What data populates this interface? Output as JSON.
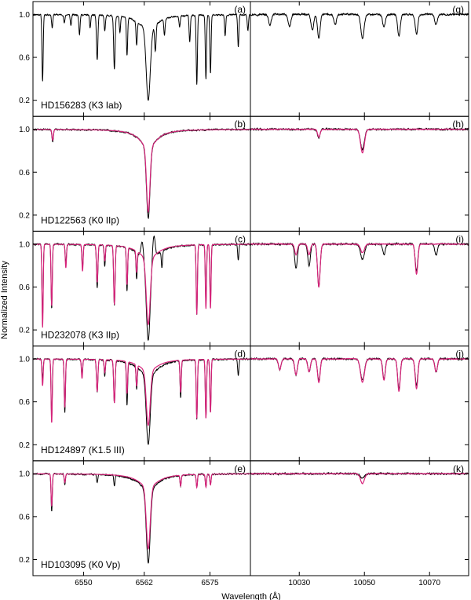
{
  "chart_data": {
    "type": "line",
    "ylabel": "Normalized Intensity",
    "xlabel": "Wavelength (Å)",
    "colors": {
      "observed": "#000000",
      "model": "#d6237a"
    },
    "x_left": {
      "lim": [
        6540,
        6583
      ],
      "ticks": [
        6550,
        6562,
        6575
      ]
    },
    "x_right": {
      "lim": [
        10015,
        10082
      ],
      "ticks": [
        10030,
        10050,
        10070
      ]
    },
    "ylim": [
      0.05,
      1.12
    ],
    "yticks": [
      "1.0",
      "0.6",
      "0.2"
    ],
    "yticks_values": [
      1.0,
      0.6,
      0.2
    ],
    "rows": [
      {
        "star": "HD156283 (K3 Iab)",
        "left_label": "(a)",
        "right_label": "(g)",
        "has_model": false,
        "left_lines": [
          {
            "x": 6541.9,
            "d": 0.62,
            "w": 0.12
          },
          {
            "x": 6543.8,
            "d": 0.12,
            "w": 0.12
          },
          {
            "x": 6546.2,
            "d": 0.08,
            "w": 0.12
          },
          {
            "x": 6547.5,
            "d": 0.1,
            "w": 0.12
          },
          {
            "x": 6549.2,
            "d": 0.18,
            "w": 0.12
          },
          {
            "x": 6551.3,
            "d": 0.12,
            "w": 0.12
          },
          {
            "x": 6552.7,
            "d": 0.42,
            "w": 0.14
          },
          {
            "x": 6554.2,
            "d": 0.15,
            "w": 0.12
          },
          {
            "x": 6556.1,
            "d": 0.5,
            "w": 0.14
          },
          {
            "x": 6557.2,
            "d": 0.15,
            "w": 0.12
          },
          {
            "x": 6558.6,
            "d": 0.35,
            "w": 0.12
          },
          {
            "x": 6560.5,
            "d": 0.22,
            "w": 0.12
          },
          {
            "x": 6562.8,
            "d": 0.8,
            "w": 0.4,
            "p": 0.18
          },
          {
            "x": 6564.2,
            "d": 0.25,
            "w": 0.14
          },
          {
            "x": 6566.0,
            "d": 0.15,
            "w": 0.12
          },
          {
            "x": 6569.0,
            "d": 0.1,
            "w": 0.12
          },
          {
            "x": 6571.0,
            "d": 0.25,
            "w": 0.12
          },
          {
            "x": 6572.4,
            "d": 0.65,
            "w": 0.12
          },
          {
            "x": 6574.2,
            "d": 0.6,
            "w": 0.12
          },
          {
            "x": 6575.1,
            "d": 0.55,
            "w": 0.12
          },
          {
            "x": 6578.0,
            "d": 0.2,
            "w": 0.12
          },
          {
            "x": 6580.6,
            "d": 0.3,
            "w": 0.12
          },
          {
            "x": 6582.5,
            "d": 0.15,
            "w": 0.12
          }
        ],
        "right_lines": [
          {
            "x": 10021,
            "d": 0.1,
            "w": 0.4
          },
          {
            "x": 10027,
            "d": 0.12,
            "w": 0.4
          },
          {
            "x": 10034,
            "d": 0.15,
            "w": 0.4
          },
          {
            "x": 10036,
            "d": 0.22,
            "w": 0.4
          },
          {
            "x": 10041,
            "d": 0.1,
            "w": 0.4
          },
          {
            "x": 10049.4,
            "d": 0.22,
            "w": 0.5
          },
          {
            "x": 10056,
            "d": 0.12,
            "w": 0.4
          },
          {
            "x": 10060.6,
            "d": 0.2,
            "w": 0.4
          },
          {
            "x": 10066,
            "d": 0.18,
            "w": 0.4
          },
          {
            "x": 10072,
            "d": 0.1,
            "w": 0.4
          }
        ]
      },
      {
        "star": "HD122563 (K0 IIp)",
        "left_label": "(b)",
        "right_label": "(h)",
        "has_model": true,
        "left_lines": [
          {
            "x": 6543.9,
            "d": 0.12,
            "w": 0.14
          },
          {
            "x": 6562.8,
            "d": 0.83,
            "w": 0.35,
            "p": 0.22
          }
        ],
        "left_model_lines": [
          {
            "x": 6543.9,
            "d": 0.1,
            "w": 0.14
          },
          {
            "x": 6562.8,
            "d": 0.77,
            "w": 0.33,
            "p": 0.25
          }
        ],
        "right_lines": [
          {
            "x": 10036,
            "d": 0.08,
            "w": 0.4
          },
          {
            "x": 10049.4,
            "d": 0.19,
            "w": 0.6
          }
        ],
        "right_model_lines": [
          {
            "x": 10036,
            "d": 0.07,
            "w": 0.4
          },
          {
            "x": 10049.4,
            "d": 0.22,
            "w": 0.6
          }
        ]
      },
      {
        "star": "HD232078 (K3 IIp)",
        "left_label": "(c)",
        "right_label": "(i)",
        "has_model": true,
        "left_lines": [
          {
            "x": 6541.9,
            "d": 0.7,
            "w": 0.12
          },
          {
            "x": 6543.7,
            "d": 0.6,
            "w": 0.12
          },
          {
            "x": 6546.5,
            "d": 0.18,
            "w": 0.12
          },
          {
            "x": 6549.8,
            "d": 0.22,
            "w": 0.12
          },
          {
            "x": 6552.7,
            "d": 0.4,
            "w": 0.14
          },
          {
            "x": 6554.2,
            "d": 0.2,
            "w": 0.12
          },
          {
            "x": 6556.1,
            "d": 0.55,
            "w": 0.14
          },
          {
            "x": 6558.6,
            "d": 0.4,
            "w": 0.12
          },
          {
            "x": 6560.5,
            "d": 0.25,
            "w": 0.12
          },
          {
            "x": 6562.8,
            "d": 0.9,
            "w": 0.38,
            "p": 0.2
          },
          {
            "x": 6565.5,
            "d": 0.15,
            "w": 0.12
          },
          {
            "x": 6572.4,
            "d": 0.65,
            "w": 0.12
          },
          {
            "x": 6574.2,
            "d": 0.55,
            "w": 0.12
          },
          {
            "x": 6575.1,
            "d": 0.55,
            "w": 0.12
          },
          {
            "x": 6580.6,
            "d": 0.15,
            "w": 0.12
          }
        ],
        "left_model_lines": [
          {
            "x": 6541.9,
            "d": 0.78,
            "w": 0.12
          },
          {
            "x": 6543.7,
            "d": 0.58,
            "w": 0.12
          },
          {
            "x": 6546.5,
            "d": 0.22,
            "w": 0.12
          },
          {
            "x": 6549.8,
            "d": 0.25,
            "w": 0.12
          },
          {
            "x": 6552.7,
            "d": 0.35,
            "w": 0.14
          },
          {
            "x": 6554.2,
            "d": 0.15,
            "w": 0.12
          },
          {
            "x": 6556.1,
            "d": 0.55,
            "w": 0.14
          },
          {
            "x": 6558.6,
            "d": 0.35,
            "w": 0.12
          },
          {
            "x": 6560.5,
            "d": 0.2,
            "w": 0.12
          },
          {
            "x": 6562.8,
            "d": 0.75,
            "w": 0.38,
            "p": 0.2
          },
          {
            "x": 6572.4,
            "d": 0.65,
            "w": 0.12
          },
          {
            "x": 6574.2,
            "d": 0.6,
            "w": 0.12
          },
          {
            "x": 6575.1,
            "d": 0.6,
            "w": 0.12
          }
        ],
        "left_emission": [
          {
            "x": 6561.6,
            "h": 0.15,
            "w": 0.25
          },
          {
            "x": 6563.9,
            "h": 0.22,
            "w": 0.25
          }
        ],
        "right_lines": [
          {
            "x": 10029,
            "d": 0.23,
            "w": 0.4
          },
          {
            "x": 10033,
            "d": 0.2,
            "w": 0.4
          },
          {
            "x": 10036,
            "d": 0.4,
            "w": 0.4
          },
          {
            "x": 10049.4,
            "d": 0.14,
            "w": 0.6
          },
          {
            "x": 10056,
            "d": 0.1,
            "w": 0.4
          },
          {
            "x": 10066,
            "d": 0.25,
            "w": 0.4
          },
          {
            "x": 10072,
            "d": 0.1,
            "w": 0.4
          }
        ],
        "right_model_lines": [
          {
            "x": 10029,
            "d": 0.1,
            "w": 0.4
          },
          {
            "x": 10033,
            "d": 0.1,
            "w": 0.4
          },
          {
            "x": 10036,
            "d": 0.4,
            "w": 0.4
          },
          {
            "x": 10049.4,
            "d": 0.08,
            "w": 0.6
          },
          {
            "x": 10066,
            "d": 0.28,
            "w": 0.4
          }
        ]
      },
      {
        "star": "HD124897 (K1.5 III)",
        "left_label": "(d)",
        "right_label": "(j)",
        "has_model": true,
        "left_lines": [
          {
            "x": 6541.9,
            "d": 0.18,
            "w": 0.12
          },
          {
            "x": 6543.7,
            "d": 0.55,
            "w": 0.12
          },
          {
            "x": 6546.3,
            "d": 0.5,
            "w": 0.12
          },
          {
            "x": 6549.7,
            "d": 0.15,
            "w": 0.12
          },
          {
            "x": 6552.7,
            "d": 0.3,
            "w": 0.14
          },
          {
            "x": 6554.2,
            "d": 0.15,
            "w": 0.12
          },
          {
            "x": 6556.1,
            "d": 0.4,
            "w": 0.14
          },
          {
            "x": 6558.6,
            "d": 0.4,
            "w": 0.12
          },
          {
            "x": 6560.5,
            "d": 0.2,
            "w": 0.12
          },
          {
            "x": 6562.8,
            "d": 0.8,
            "w": 0.38,
            "p": 0.22
          },
          {
            "x": 6569.2,
            "d": 0.35,
            "w": 0.12
          },
          {
            "x": 6572.4,
            "d": 0.55,
            "w": 0.12
          },
          {
            "x": 6574.2,
            "d": 0.55,
            "w": 0.12
          },
          {
            "x": 6575.1,
            "d": 0.5,
            "w": 0.12
          },
          {
            "x": 6580.6,
            "d": 0.15,
            "w": 0.12
          }
        ],
        "left_model_lines": [
          {
            "x": 6541.9,
            "d": 0.25,
            "w": 0.12
          },
          {
            "x": 6543.7,
            "d": 0.6,
            "w": 0.12
          },
          {
            "x": 6546.3,
            "d": 0.45,
            "w": 0.12
          },
          {
            "x": 6549.7,
            "d": 0.18,
            "w": 0.12
          },
          {
            "x": 6552.7,
            "d": 0.3,
            "w": 0.14
          },
          {
            "x": 6554.2,
            "d": 0.12,
            "w": 0.12
          },
          {
            "x": 6556.1,
            "d": 0.4,
            "w": 0.14
          },
          {
            "x": 6558.6,
            "d": 0.3,
            "w": 0.12
          },
          {
            "x": 6560.5,
            "d": 0.2,
            "w": 0.12
          },
          {
            "x": 6562.8,
            "d": 0.62,
            "w": 0.38,
            "p": 0.2
          },
          {
            "x": 6569.2,
            "d": 0.3,
            "w": 0.12
          },
          {
            "x": 6572.4,
            "d": 0.55,
            "w": 0.12
          },
          {
            "x": 6574.2,
            "d": 0.55,
            "w": 0.12
          },
          {
            "x": 6575.1,
            "d": 0.5,
            "w": 0.12
          }
        ],
        "right_lines": [
          {
            "x": 10024,
            "d": 0.1,
            "w": 0.4
          },
          {
            "x": 10029,
            "d": 0.15,
            "w": 0.4
          },
          {
            "x": 10033,
            "d": 0.12,
            "w": 0.4
          },
          {
            "x": 10036,
            "d": 0.2,
            "w": 0.4
          },
          {
            "x": 10049.4,
            "d": 0.2,
            "w": 0.6
          },
          {
            "x": 10056,
            "d": 0.18,
            "w": 0.4
          },
          {
            "x": 10060.6,
            "d": 0.28,
            "w": 0.4
          },
          {
            "x": 10066,
            "d": 0.25,
            "w": 0.4
          },
          {
            "x": 10072,
            "d": 0.12,
            "w": 0.4
          }
        ],
        "right_model_lines": [
          {
            "x": 10024,
            "d": 0.1,
            "w": 0.4
          },
          {
            "x": 10029,
            "d": 0.15,
            "w": 0.4
          },
          {
            "x": 10033,
            "d": 0.12,
            "w": 0.4
          },
          {
            "x": 10036,
            "d": 0.22,
            "w": 0.4
          },
          {
            "x": 10049.4,
            "d": 0.22,
            "w": 0.6
          },
          {
            "x": 10056,
            "d": 0.2,
            "w": 0.4
          },
          {
            "x": 10060.6,
            "d": 0.3,
            "w": 0.4
          },
          {
            "x": 10066,
            "d": 0.28,
            "w": 0.4
          },
          {
            "x": 10072,
            "d": 0.12,
            "w": 0.4
          }
        ]
      },
      {
        "star": "HD103095 (K0 Vp)",
        "left_label": "(e)",
        "right_label": "(k)",
        "has_model": true,
        "left_lines": [
          {
            "x": 6543.7,
            "d": 0.35,
            "w": 0.12
          },
          {
            "x": 6546.3,
            "d": 0.1,
            "w": 0.12
          },
          {
            "x": 6552.7,
            "d": 0.08,
            "w": 0.12
          },
          {
            "x": 6556.1,
            "d": 0.1,
            "w": 0.12
          },
          {
            "x": 6562.8,
            "d": 0.83,
            "w": 0.38,
            "p": 0.2
          },
          {
            "x": 6569.2,
            "d": 0.1,
            "w": 0.12
          },
          {
            "x": 6572.4,
            "d": 0.12,
            "w": 0.12
          },
          {
            "x": 6574.2,
            "d": 0.12,
            "w": 0.12
          },
          {
            "x": 6575.1,
            "d": 0.1,
            "w": 0.12
          }
        ],
        "left_model_lines": [
          {
            "x": 6543.7,
            "d": 0.3,
            "w": 0.12
          },
          {
            "x": 6546.3,
            "d": 0.08,
            "w": 0.12
          },
          {
            "x": 6562.8,
            "d": 0.7,
            "w": 0.38,
            "p": 0.2
          },
          {
            "x": 6569.2,
            "d": 0.1,
            "w": 0.12
          },
          {
            "x": 6572.4,
            "d": 0.12,
            "w": 0.12
          },
          {
            "x": 6574.2,
            "d": 0.12,
            "w": 0.12
          },
          {
            "x": 6575.1,
            "d": 0.1,
            "w": 0.12
          }
        ],
        "right_lines": [
          {
            "x": 10049.4,
            "d": 0.05,
            "w": 0.6
          }
        ],
        "right_model_lines": [
          {
            "x": 10049.4,
            "d": 0.09,
            "w": 0.6
          }
        ]
      }
    ]
  }
}
